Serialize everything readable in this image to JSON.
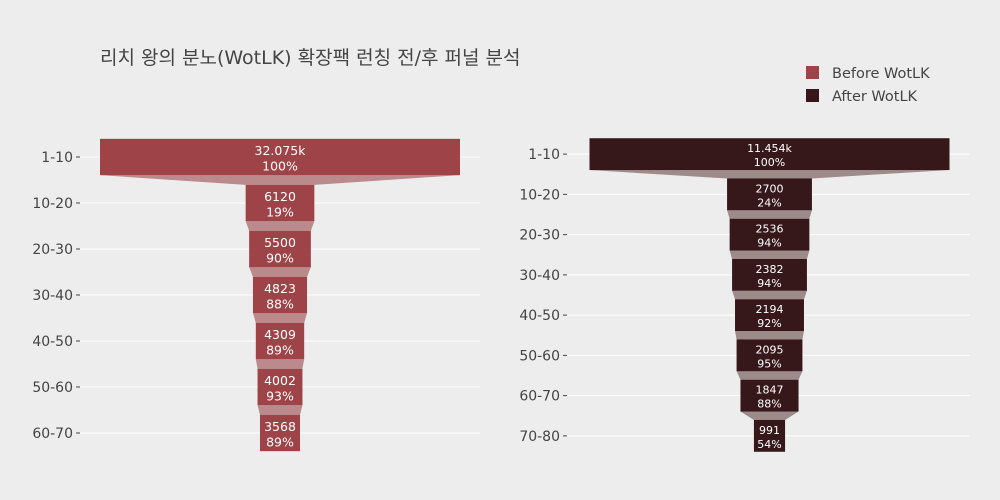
{
  "chart_data": {
    "type": "funnel",
    "title": "리치 왕의 분노(WotLK) 확장팩 런칭 전/후 퍼널 분석",
    "legend": {
      "placement": "top-right",
      "entries": [
        {
          "name": "Before WotLK",
          "color": "#9e4448"
        },
        {
          "name": "After WotLK",
          "color": "#36181b"
        }
      ]
    },
    "grid": true,
    "connector_colors": {
      "before": "#bb8a8c",
      "after": "#9d8b8c"
    },
    "panels": [
      {
        "series_name": "Before WotLK",
        "color": "#9e4448",
        "stages": [
          {
            "category": "1-10",
            "value": 32075,
            "value_label": "32.075k",
            "percent_label": "100%"
          },
          {
            "category": "10-20",
            "value": 6120,
            "value_label": "6120",
            "percent_label": "19%"
          },
          {
            "category": "20-30",
            "value": 5500,
            "value_label": "5500",
            "percent_label": "90%"
          },
          {
            "category": "30-40",
            "value": 4823,
            "value_label": "4823",
            "percent_label": "88%"
          },
          {
            "category": "40-50",
            "value": 4309,
            "value_label": "4309",
            "percent_label": "89%"
          },
          {
            "category": "50-60",
            "value": 4002,
            "value_label": "4002",
            "percent_label": "93%"
          },
          {
            "category": "60-70",
            "value": 3568,
            "value_label": "3568",
            "percent_label": "89%"
          }
        ]
      },
      {
        "series_name": "After WotLK",
        "color": "#36181b",
        "stages": [
          {
            "category": "1-10",
            "value": 11454,
            "value_label": "11.454k",
            "percent_label": "100%"
          },
          {
            "category": "10-20",
            "value": 2700,
            "value_label": "2700",
            "percent_label": "24%"
          },
          {
            "category": "20-30",
            "value": 2536,
            "value_label": "2536",
            "percent_label": "94%"
          },
          {
            "category": "30-40",
            "value": 2382,
            "value_label": "2382",
            "percent_label": "94%"
          },
          {
            "category": "40-50",
            "value": 2194,
            "value_label": "2194",
            "percent_label": "92%"
          },
          {
            "category": "50-60",
            "value": 2095,
            "value_label": "2095",
            "percent_label": "95%"
          },
          {
            "category": "60-70",
            "value": 1847,
            "value_label": "1847",
            "percent_label": "88%"
          },
          {
            "category": "70-80",
            "value": 991,
            "value_label": "991",
            "percent_label": "54%"
          }
        ]
      }
    ]
  }
}
